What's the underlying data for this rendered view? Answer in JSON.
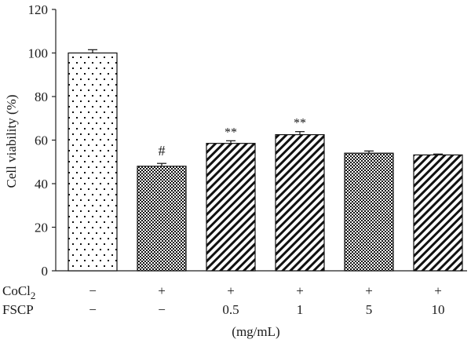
{
  "chart_data": {
    "type": "bar",
    "ylabel": "Cell viability (%)",
    "ylim": [
      0,
      120
    ],
    "yticks": [
      0,
      20,
      40,
      60,
      80,
      100,
      120
    ],
    "x_unit_label": "(mg/mL)",
    "bars": [
      {
        "value": 100,
        "error": 1.5,
        "annotation": "",
        "pattern": "dots"
      },
      {
        "value": 48,
        "error": 1.3,
        "annotation": "#",
        "pattern": "checker"
      },
      {
        "value": 58.5,
        "error": 1.2,
        "annotation": "**",
        "pattern": "diag"
      },
      {
        "value": 62.5,
        "error": 1.4,
        "annotation": "**",
        "pattern": "diag"
      },
      {
        "value": 54,
        "error": 1.0,
        "annotation": "",
        "pattern": "checker"
      },
      {
        "value": 53.2,
        "error": 0.4,
        "annotation": "",
        "pattern": "diag"
      }
    ],
    "treatment_rows": [
      {
        "label": "CoCl",
        "label_sub": "2",
        "values": [
          "−",
          "+",
          "+",
          "+",
          "+",
          "+"
        ]
      },
      {
        "label": "FSCP",
        "label_sub": "",
        "values": [
          "−",
          "−",
          "0.5",
          "1",
          "5",
          "10"
        ]
      }
    ]
  }
}
